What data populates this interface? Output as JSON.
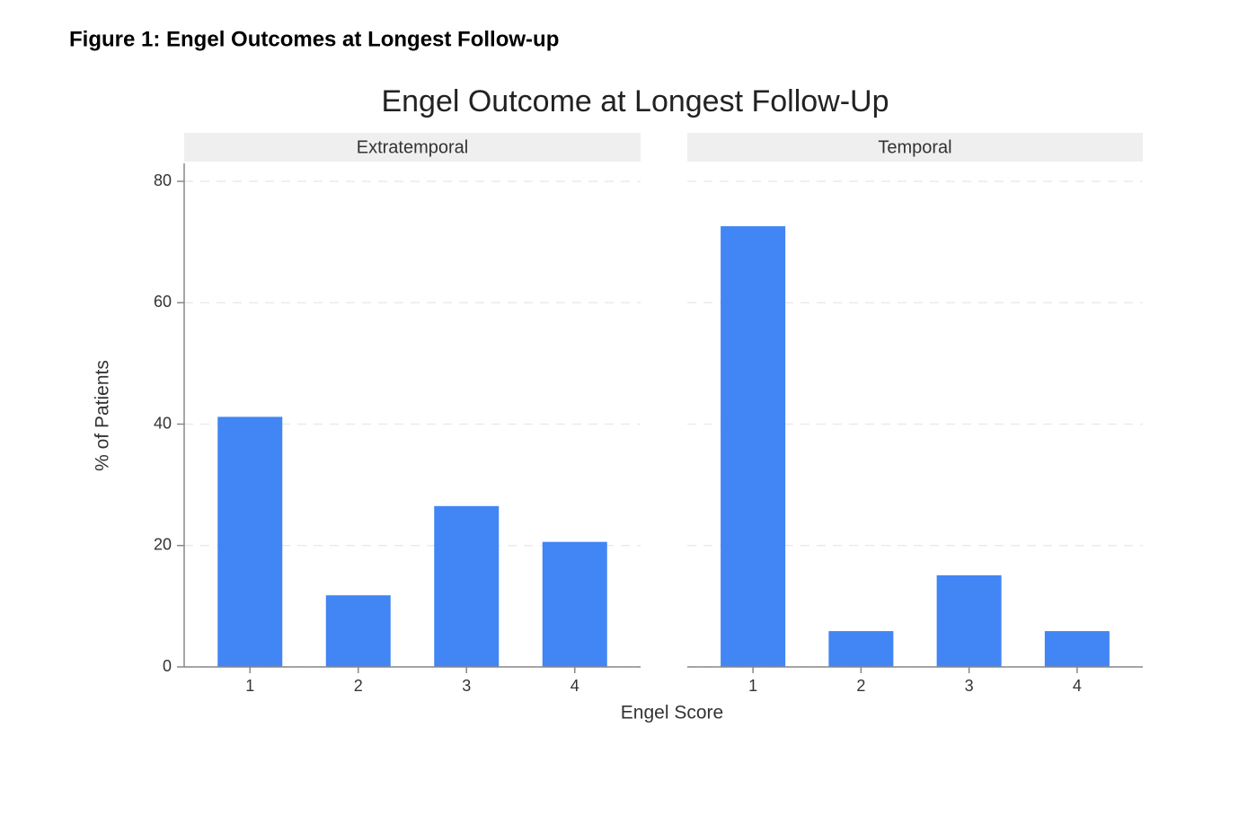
{
  "caption": "Figure 1: Engel Outcomes at Longest Follow-up",
  "title": "Engel Outcome at Longest Follow-Up",
  "x_label": "Engel Score",
  "y_label": "% of Patients",
  "chart_data": [
    {
      "type": "bar",
      "title": "Extratemporal",
      "categories": [
        "1",
        "2",
        "3",
        "4"
      ],
      "values": [
        41.2,
        11.8,
        26.5,
        20.6
      ],
      "color": "#4285f4",
      "ylim": [
        0,
        80
      ],
      "yticks": [
        0,
        20,
        40,
        60,
        80
      ],
      "grid": true
    },
    {
      "type": "bar",
      "title": "Temporal",
      "categories": [
        "1",
        "2",
        "3",
        "4"
      ],
      "values": [
        72.6,
        5.9,
        15.1,
        5.9
      ],
      "color": "#4285f4",
      "ylim": [
        0,
        80
      ],
      "grid": true
    }
  ]
}
